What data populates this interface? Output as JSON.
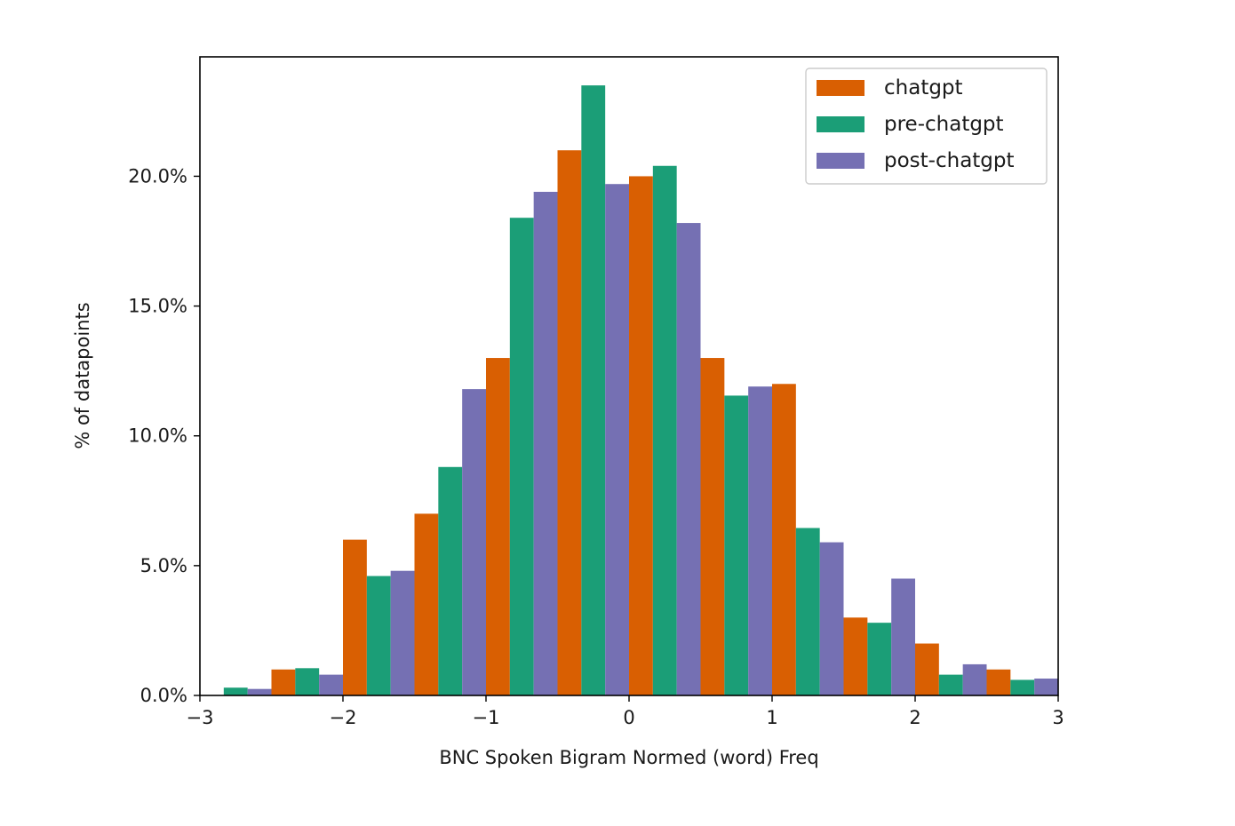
{
  "chart_data": {
    "type": "bar",
    "title": "",
    "xlabel": "BNC Spoken Bigram Normed (word) Freq",
    "ylabel": "% of datapoints",
    "xlim": [
      -3,
      3
    ],
    "ylim": [
      0,
      0.246
    ],
    "x_ticks": [
      -3,
      -2,
      -1,
      0,
      1,
      2,
      3
    ],
    "x_tick_labels": [
      "−3",
      "−2",
      "−1",
      "0",
      "1",
      "2",
      "3"
    ],
    "y_ticks": [
      0.0,
      0.05,
      0.1,
      0.15,
      0.2
    ],
    "y_tick_labels": [
      "0.0%",
      "5.0%",
      "10.0%",
      "15.0%",
      "20.0%"
    ],
    "grid": false,
    "legend_position": "top-right",
    "bin_edges": [
      -3.0,
      -2.5,
      -2.0,
      -1.5,
      -1.0,
      -0.5,
      0.0,
      0.5,
      1.0,
      1.5,
      2.0,
      2.5,
      3.0
    ],
    "series": [
      {
        "name": "chatgpt",
        "color": "#d95f02",
        "values": [
          0.0,
          0.01,
          0.06,
          0.07,
          0.13,
          0.21,
          0.2,
          0.13,
          0.12,
          0.03,
          0.02,
          0.01
        ]
      },
      {
        "name": "pre-chatgpt",
        "color": "#1b9e77",
        "values": [
          0.003,
          0.0105,
          0.046,
          0.088,
          0.184,
          0.235,
          0.204,
          0.1155,
          0.0645,
          0.028,
          0.008,
          0.006
        ]
      },
      {
        "name": "post-chatgpt",
        "color": "#7570b3",
        "values": [
          0.0025,
          0.008,
          0.048,
          0.118,
          0.194,
          0.197,
          0.182,
          0.119,
          0.059,
          0.045,
          0.012,
          0.0065
        ]
      }
    ]
  }
}
